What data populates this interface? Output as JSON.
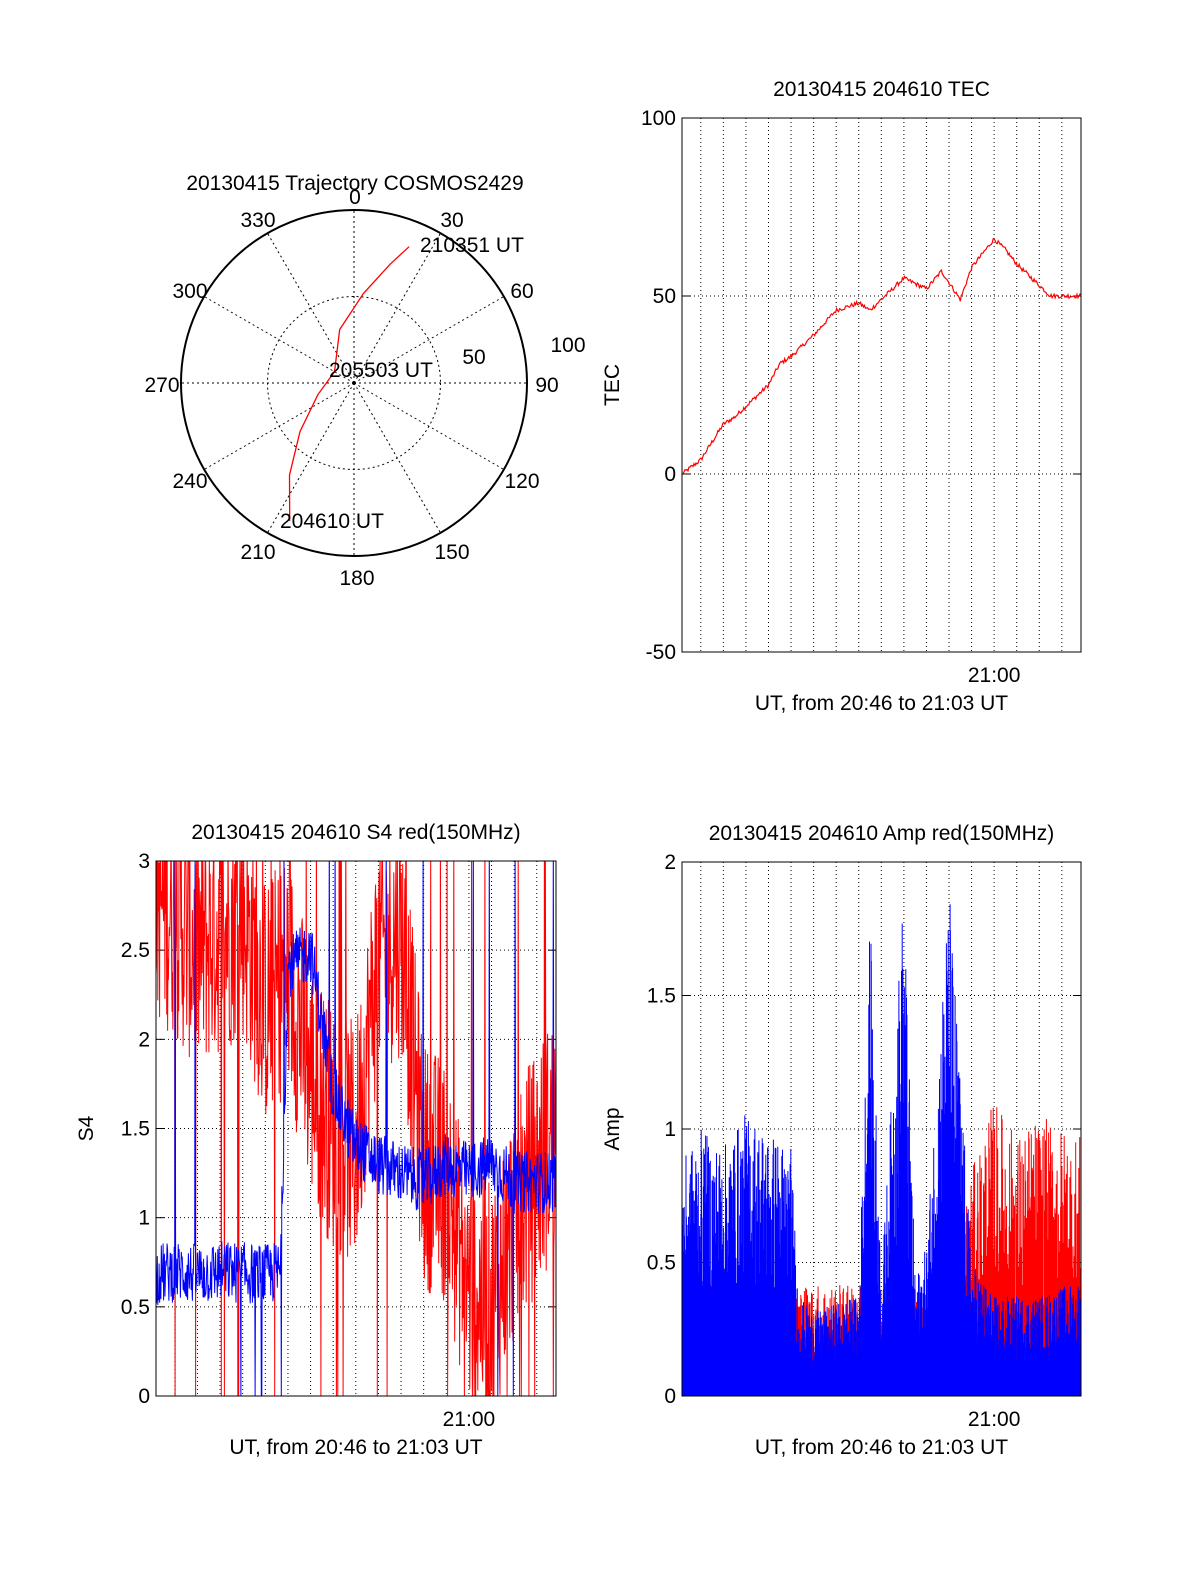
{
  "chart_data": [
    {
      "type": "polar",
      "title": "20130415 Trajectory COSMOS2429",
      "angle_ticks": [
        "0",
        "30",
        "60",
        "90",
        "120",
        "150",
        "180",
        "210",
        "240",
        "270",
        "300",
        "330"
      ],
      "radial_ticks": [
        "50",
        "100"
      ],
      "series": [
        {
          "color": "#ff0000",
          "points": [
            {
              "azimuth": 205,
              "zenith_angle": 88
            },
            {
              "azimuth": 215,
              "zenith_angle": 65
            },
            {
              "azimuth": 228,
              "zenith_angle": 42
            },
            {
              "azimuth": 252,
              "zenith_angle": 22
            },
            {
              "azimuth": 300,
              "zenith_angle": 13
            },
            {
              "azimuth": 345,
              "zenith_angle": 32
            },
            {
              "azimuth": 6,
              "zenith_angle": 52
            },
            {
              "azimuth": 17,
              "zenith_angle": 72
            },
            {
              "azimuth": 22,
              "zenith_angle": 85
            }
          ]
        }
      ],
      "annotations": [
        "210351 UT",
        "205503 UT",
        "204610 UT"
      ]
    },
    {
      "type": "line",
      "title": "20130415 204610 TEC",
      "xlabel": "UT, from 20:46 to 21:03 UT",
      "ylabel": "TEC",
      "ylim": [
        -50,
        100
      ],
      "yticks": [
        "100",
        "50",
        "0",
        "-50"
      ],
      "xticks": [
        "21:00"
      ],
      "grid": true,
      "series": [
        {
          "color": "#ff0000",
          "x": [
            "20:46:10",
            "20:47:00",
            "20:47:30",
            "20:48:00",
            "20:48:30",
            "20:49:00",
            "20:50:00",
            "20:50:30",
            "20:51:00",
            "20:51:30",
            "20:52:00",
            "20:53:00",
            "20:54:00",
            "20:54:30",
            "20:55:00",
            "20:55:30",
            "20:56:00",
            "20:57:00",
            "20:57:40",
            "20:58:30",
            "20:59:00",
            "20:59:30",
            "21:00:00",
            "21:00:30",
            "21:01:00",
            "21:02:00",
            "21:02:30",
            "21:03:51"
          ],
          "y": [
            0,
            4,
            9,
            14,
            16,
            19,
            25,
            31,
            33,
            36,
            39,
            46,
            48,
            46,
            49,
            52,
            55,
            52,
            57,
            49,
            58,
            62,
            66,
            63,
            59,
            53,
            50,
            50
          ]
        }
      ]
    },
    {
      "type": "line",
      "title": "20130415 204610 S4 red(150MHz)",
      "xlabel": "UT, from 20:46 to 21:03 UT",
      "ylabel": "S4",
      "ylim": [
        0,
        3
      ],
      "yticks": [
        "3",
        "2.5",
        "2",
        "1.5",
        "1",
        "0.5",
        "0"
      ],
      "xticks": [
        "21:00"
      ],
      "grid": true,
      "series": [
        {
          "color": "#ff0000",
          "x": [
            "20:46:10",
            "20:47:00",
            "20:48:00",
            "20:49:00",
            "20:50:00",
            "20:51:00",
            "20:52:00",
            "20:53:00",
            "20:54:00",
            "20:55:00",
            "20:56:00",
            "20:57:00",
            "20:58:00",
            "20:59:00",
            "21:00:00",
            "21:01:00",
            "21:02:00",
            "21:03:51"
          ],
          "y": [
            2.8,
            2.7,
            2.5,
            2.6,
            2.7,
            2.2,
            2.4,
            1.8,
            1.5,
            1.4,
            2.5,
            2.6,
            1.3,
            1.2,
            0.6,
            0.5,
            1.0,
            1.5
          ]
        },
        {
          "color": "#0000ff",
          "x": [
            "20:46:10",
            "20:47:00",
            "20:48:00",
            "20:49:00",
            "20:50:00",
            "20:51:00",
            "20:51:40",
            "20:52:00",
            "20:53:00",
            "20:54:00",
            "20:55:00",
            "20:56:00",
            "20:57:00",
            "20:58:00",
            "20:59:00",
            "21:00:00",
            "21:01:00",
            "21:02:00",
            "21:03:51"
          ],
          "y": [
            0.68,
            0.7,
            0.68,
            0.7,
            0.69,
            0.68,
            0.7,
            2.4,
            2.5,
            1.7,
            1.4,
            1.3,
            1.25,
            1.2,
            1.3,
            1.25,
            1.3,
            1.2,
            1.2
          ]
        }
      ]
    },
    {
      "type": "line",
      "title": "20130415 204610 Amp red(150MHz)",
      "xlabel": "UT, from 20:46 to 21:03 UT",
      "ylabel": "Amp",
      "ylim": [
        0,
        2
      ],
      "yticks": [
        "2",
        "1.5",
        "1",
        "0.5",
        "0"
      ],
      "xticks": [
        "21:00"
      ],
      "grid": true,
      "series": [
        {
          "color": "#ff0000",
          "x": [
            "20:46:10",
            "20:50:00",
            "20:55:00",
            "20:58:00",
            "20:59:00",
            "21:00:00",
            "21:01:00",
            "21:02:00",
            "21:03:51"
          ],
          "y": [
            0.3,
            0.3,
            0.3,
            0.3,
            0.6,
            0.8,
            0.7,
            0.75,
            0.7
          ]
        },
        {
          "color": "#0000ff",
          "x": [
            "20:46:10",
            "20:47:00",
            "20:48:00",
            "20:49:00",
            "20:50:00",
            "20:51:00",
            "20:51:20",
            "20:52:00",
            "20:53:00",
            "20:54:00",
            "20:54:30",
            "20:55:00",
            "20:56:00",
            "20:56:30",
            "20:57:00",
            "20:58:00",
            "20:59:00",
            "21:00:00",
            "21:01:00",
            "21:02:00",
            "21:03:51"
          ],
          "y": [
            0.7,
            0.8,
            0.75,
            0.85,
            0.8,
            0.75,
            0.3,
            0.25,
            0.28,
            0.3,
            1.45,
            0.35,
            1.55,
            0.35,
            0.45,
            1.55,
            0.4,
            0.3,
            0.3,
            0.3,
            0.35
          ]
        }
      ]
    }
  ]
}
